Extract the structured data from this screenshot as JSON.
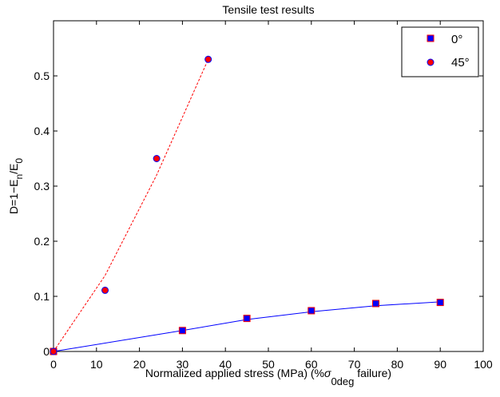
{
  "chart_data": {
    "type": "scatter",
    "title": "Tensile test results",
    "xlabel": {
      "main": "Normalized applied stress (MPa) (%",
      "sigma": "σ",
      "sub": "0deg",
      "tail": " failure)"
    },
    "ylabel": {
      "main": "D=1−E",
      "sub1": "n",
      "slash": "/E",
      "sub2": "0"
    },
    "xlim": [
      0,
      100
    ],
    "ylim": [
      0,
      0.6
    ],
    "xticks": [
      "0",
      "10",
      "20",
      "30",
      "40",
      "50",
      "60",
      "70",
      "80",
      "90",
      "100"
    ],
    "xtick_values": [
      0,
      10,
      20,
      30,
      40,
      50,
      60,
      70,
      80,
      90,
      100
    ],
    "yticks": [
      "0",
      "0.1",
      "0.2",
      "0.3",
      "0.4",
      "0.5"
    ],
    "ytick_values": [
      0,
      0.1,
      0.2,
      0.3,
      0.4,
      0.5
    ],
    "grid": false,
    "legend_position": "top-right",
    "series": [
      {
        "name": "0°",
        "marker": "square",
        "marker_fill": "#0000ff",
        "marker_edge": "#ff0000",
        "points": [
          [
            0,
            0
          ],
          [
            30,
            0.038
          ],
          [
            45,
            0.06
          ],
          [
            60,
            0.074
          ],
          [
            75,
            0.087
          ],
          [
            90,
            0.089
          ]
        ],
        "fit_line": {
          "style": "solid",
          "color": "#0000ff",
          "points": [
            [
              0,
              0
            ],
            [
              30,
              0.038
            ],
            [
              45,
              0.058
            ],
            [
              60,
              0.072
            ],
            [
              75,
              0.083
            ],
            [
              90,
              0.09
            ]
          ]
        }
      },
      {
        "name": "45°",
        "marker": "circle",
        "marker_fill": "#ff0000",
        "marker_edge": "#0000ff",
        "points": [
          [
            0,
            0
          ],
          [
            12,
            0.111
          ],
          [
            24,
            0.35
          ],
          [
            36,
            0.53
          ]
        ],
        "fit_line": {
          "style": "dashed",
          "color": "#ff0000",
          "points": [
            [
              0,
              0
            ],
            [
              12,
              0.138
            ],
            [
              24,
              0.32
            ],
            [
              36,
              0.53
            ]
          ]
        }
      }
    ]
  }
}
